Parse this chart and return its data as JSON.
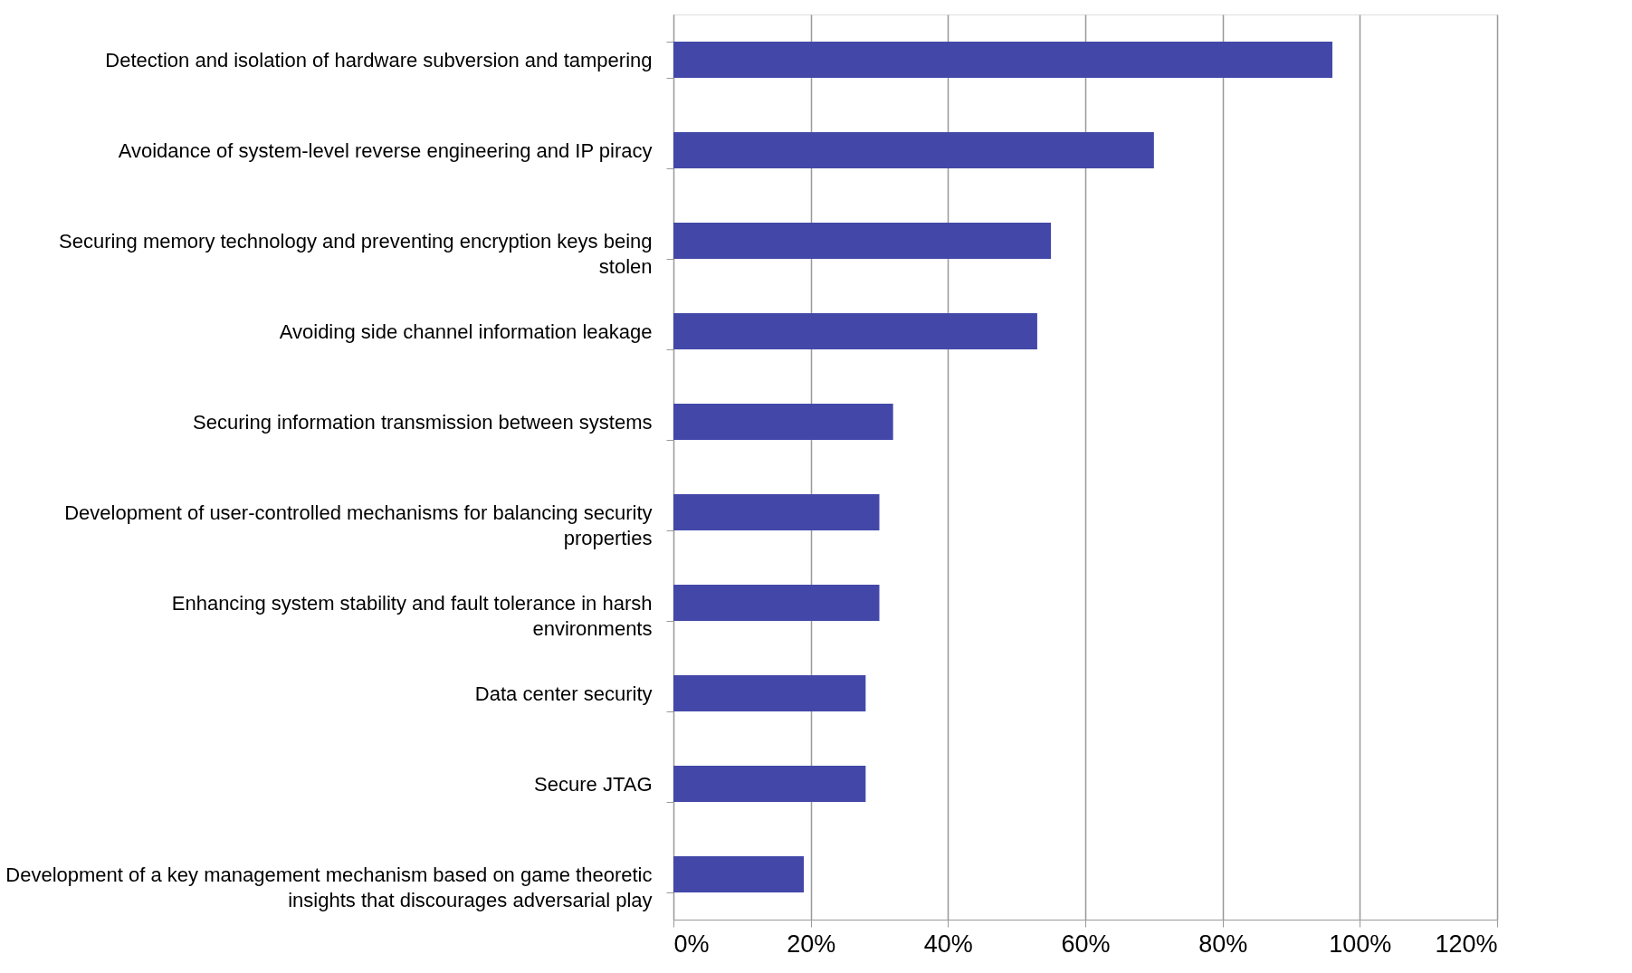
{
  "chart_data": {
    "type": "bar",
    "orientation": "horizontal",
    "categories": [
      "Detection and isolation of hardware subversion and tampering",
      "Avoidance of system-level reverse engineering and IP piracy",
      "Securing memory technology and preventing encryption keys being stolen",
      "Avoiding side channel information leakage",
      "Securing information transmission between systems",
      "Development of user-controlled mechanisms for balancing security properties",
      "Enhancing system stability and fault tolerance in harsh environments",
      "Data center security",
      "Secure JTAG",
      "Development of a key management mechanism based on game theoretic insights that discourages adversarial play"
    ],
    "values": [
      96,
      70,
      55,
      53,
      32,
      30,
      30,
      28,
      28,
      19
    ],
    "color": "#4348a8",
    "xlim": [
      0,
      120
    ],
    "xticks": [
      {
        "value": 0,
        "label": "0%"
      },
      {
        "value": 20,
        "label": "20%"
      },
      {
        "value": 40,
        "label": "40%"
      },
      {
        "value": 60,
        "label": "60%"
      },
      {
        "value": 80,
        "label": "80%"
      },
      {
        "value": 100,
        "label": "100%"
      },
      {
        "value": 120,
        "label": "120%"
      }
    ],
    "grid": "x"
  }
}
